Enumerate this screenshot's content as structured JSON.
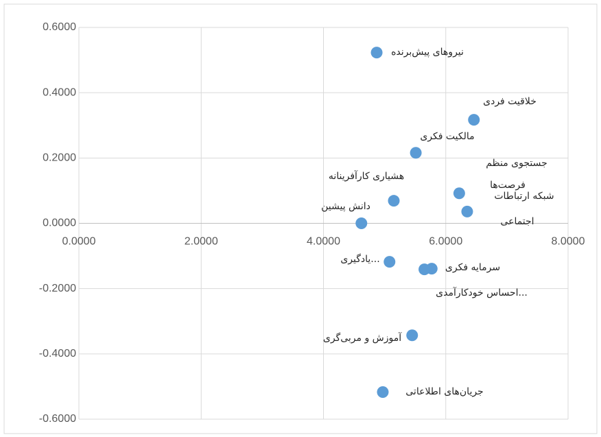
{
  "chart_data": {
    "type": "scatter",
    "x": [
      4.87,
      6.46,
      5.51,
      6.22,
      6.35,
      5.15,
      4.62,
      5.08,
      5.77,
      5.65,
      5.45,
      4.97
    ],
    "values": [
      0.523,
      0.317,
      0.216,
      0.092,
      0.036,
      0.069,
      0.0,
      -0.118,
      -0.139,
      -0.141,
      -0.343,
      -0.517
    ],
    "labels": [
      [
        "نیروهای پیش‌برنده"
      ],
      [
        "خلاقیت فردی"
      ],
      [
        "مالکیت فکری"
      ],
      [
        "جستجوی منظم",
        "فرصت‌ها"
      ],
      [
        "شبکه ارتباطات",
        "اجتماعی"
      ],
      [
        "هشیاری کارآفرینانه"
      ],
      [
        "دانش پیشین"
      ],
      [
        "یادگیری..."
      ],
      [
        "سرمایه فکری"
      ],
      [
        "احساس خودکارآمدی..."
      ],
      [
        "آموزش و مربی‌گری"
      ],
      [
        "جریان‌های اطلاعاتی"
      ]
    ],
    "color": "#5b9bd5",
    "xlim": [
      0,
      8
    ],
    "xticks": [
      {
        "value": 0,
        "label": "0.0000"
      },
      {
        "value": 2,
        "label": "2.0000"
      },
      {
        "value": 4,
        "label": "4.0000"
      },
      {
        "value": 6,
        "label": "6.0000"
      },
      {
        "value": 8,
        "label": "8.0000"
      }
    ],
    "ylim": [
      -0.6,
      0.6
    ],
    "yticks": [
      {
        "value": -0.6,
        "label": "-0.6000"
      },
      {
        "value": -0.4,
        "label": "-0.4000"
      },
      {
        "value": -0.2,
        "label": "-0.2000"
      },
      {
        "value": 0,
        "label": "0.0000"
      },
      {
        "value": 0.2,
        "label": "0.2000"
      },
      {
        "value": 0.4,
        "label": "0.4000"
      },
      {
        "value": 0.6,
        "label": "0.6000"
      }
    ],
    "grid": true
  }
}
